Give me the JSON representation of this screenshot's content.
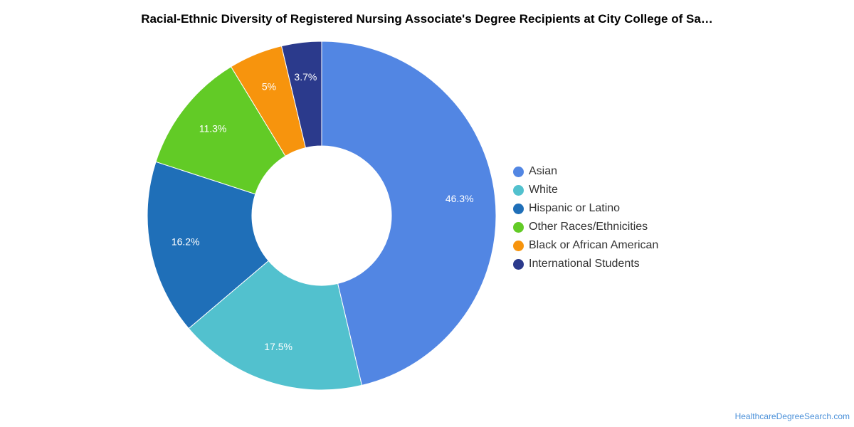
{
  "chart_data": {
    "type": "pie",
    "title": "Racial-Ethnic Diversity of Registered Nursing Associate's Degree Recipients at City College of Sa…",
    "donut": true,
    "legend_position": "right",
    "slices": [
      {
        "label": "Asian",
        "value": 46.3,
        "display": "46.3%",
        "color": "#5286E3"
      },
      {
        "label": "White",
        "value": 17.5,
        "display": "17.5%",
        "color": "#52C1CE"
      },
      {
        "label": "Hispanic or Latino",
        "value": 16.2,
        "display": "16.2%",
        "color": "#1F6FB8"
      },
      {
        "label": "Other Races/Ethnicities",
        "value": 11.3,
        "display": "11.3%",
        "color": "#62CB26"
      },
      {
        "label": "Black or African American",
        "value": 5.0,
        "display": "5%",
        "color": "#F7940D"
      },
      {
        "label": "International Students",
        "value": 3.7,
        "display": "3.7%",
        "color": "#2B3A8C"
      }
    ]
  },
  "source_link": "HealthcareDegreeSearch.com"
}
